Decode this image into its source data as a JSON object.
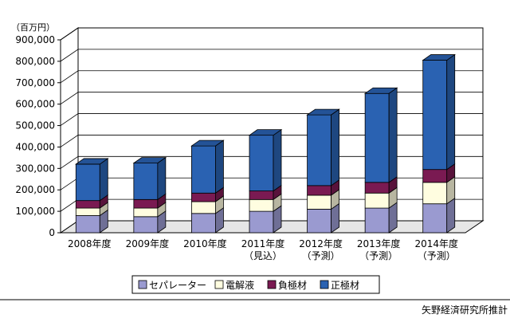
{
  "chart_data": {
    "type": "bar",
    "stacked": true,
    "unit_label": "（百万円）",
    "ylim": [
      0,
      900000
    ],
    "y_ticks": [
      "0",
      "100,000",
      "200,000",
      "300,000",
      "400,000",
      "500,000",
      "600,000",
      "700,000",
      "800,000",
      "900,000"
    ],
    "categories": [
      {
        "line1": "2008年度",
        "line2": ""
      },
      {
        "line1": "2009年度",
        "line2": ""
      },
      {
        "line1": "2010年度",
        "line2": ""
      },
      {
        "line1": "2011年度",
        "line2": "（見込）"
      },
      {
        "line1": "2012年度",
        "line2": "（予測）"
      },
      {
        "line1": "2013年度",
        "line2": "（予測）"
      },
      {
        "line1": "2014年度",
        "line2": "（予測）"
      }
    ],
    "series": [
      {
        "name": "セパレーター",
        "color": "#9a9ad0",
        "values": [
          80000,
          75000,
          90000,
          100000,
          110000,
          115000,
          135000
        ]
      },
      {
        "name": "電解液",
        "color": "#fffde0",
        "values": [
          35000,
          40000,
          55000,
          55000,
          65000,
          70000,
          100000
        ]
      },
      {
        "name": "負極材",
        "color": "#7a1a52",
        "values": [
          35000,
          40000,
          40000,
          40000,
          45000,
          50000,
          60000
        ]
      },
      {
        "name": "正極材",
        "color": "#2a62b2",
        "values": [
          170000,
          170000,
          220000,
          260000,
          330000,
          415000,
          510000
        ]
      }
    ],
    "legend_position": "bottom",
    "source": "矢野経済研究所推計"
  }
}
